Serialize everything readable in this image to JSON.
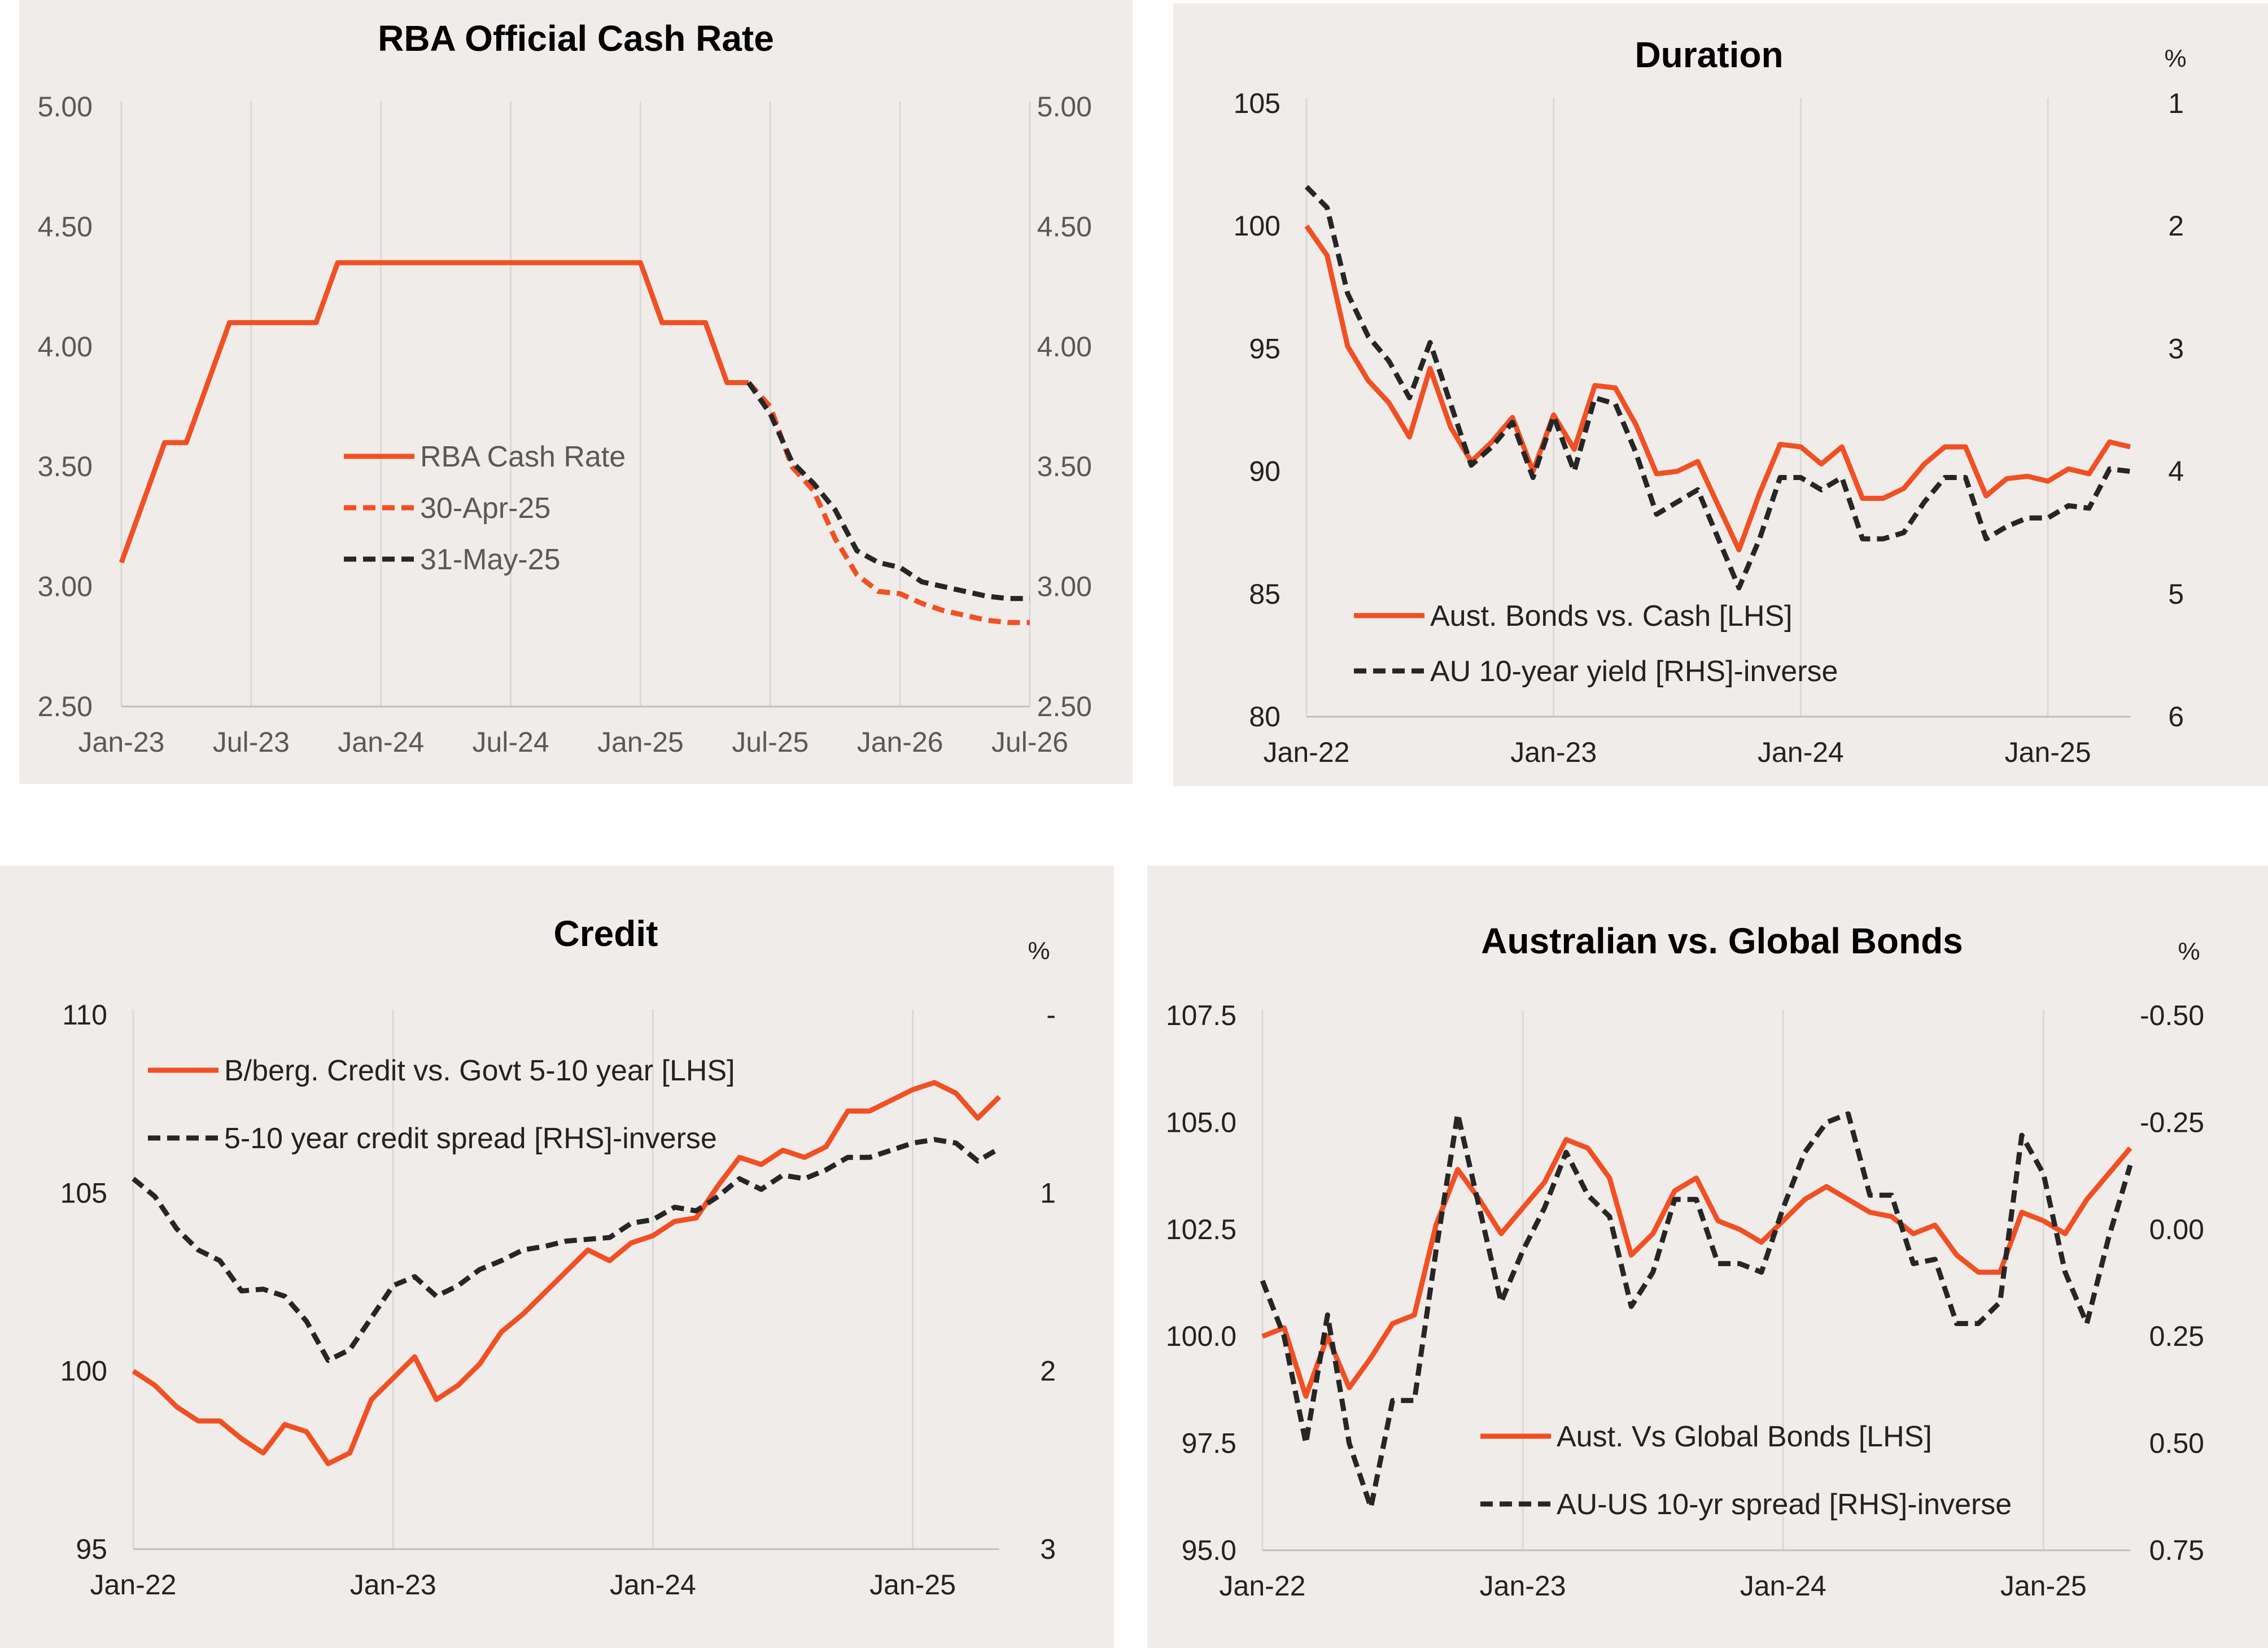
{
  "colors": {
    "orange": "#f05023",
    "black": "#262626",
    "panel_bg": "#f0ecea",
    "grid": "#d9d9d9"
  },
  "chart_data": [
    {
      "type": "line",
      "title": "RBA Official Cash Rate",
      "y_ticks_left": [
        "5.00",
        "4.50",
        "4.00",
        "3.50",
        "3.00",
        "2.50"
      ],
      "y_ticks_right": [
        "5.00",
        "4.50",
        "4.00",
        "3.50",
        "3.00",
        "2.50"
      ],
      "x_ticks": [
        "Jan-23",
        "Jul-23",
        "Jan-24",
        "Jul-24",
        "Jan-25",
        "Jul-25",
        "Jan-26",
        "Jul-26"
      ],
      "ylim": [
        2.5,
        5.0
      ],
      "legend_position": "center",
      "grid": "vertical",
      "series": [
        {
          "name": "RBA Cash Rate",
          "style": "solid",
          "color": "#f05023",
          "x": [
            "2023-01",
            "2023-03",
            "2023-04",
            "2023-06",
            "2023-07",
            "2023-08",
            "2023-09",
            "2023-10",
            "2023-11",
            "2024-01",
            "2024-03",
            "2024-06",
            "2024-09",
            "2024-12",
            "2025-01",
            "2025-02",
            "2025-03",
            "2025-04",
            "2025-05",
            "2025-06"
          ],
          "y": [
            3.1,
            3.6,
            3.6,
            4.1,
            4.1,
            4.1,
            4.1,
            4.1,
            4.35,
            4.35,
            4.35,
            4.35,
            4.35,
            4.35,
            4.35,
            4.1,
            4.1,
            4.1,
            3.85,
            3.85
          ]
        },
        {
          "name": "30-Apr-25",
          "style": "dashed",
          "color": "#f05023",
          "x": [
            "2025-06",
            "2025-07",
            "2025-08",
            "2025-09",
            "2025-10",
            "2025-11",
            "2025-12",
            "2026-01",
            "2026-02",
            "2026-03",
            "2026-04",
            "2026-05",
            "2026-06",
            "2026-07"
          ],
          "y": [
            3.85,
            3.75,
            3.5,
            3.4,
            3.2,
            3.05,
            2.98,
            2.97,
            2.93,
            2.9,
            2.88,
            2.86,
            2.85,
            2.85
          ]
        },
        {
          "name": "31-May-25",
          "style": "dashed",
          "color": "#262626",
          "x": [
            "2025-06",
            "2025-07",
            "2025-08",
            "2025-09",
            "2025-10",
            "2025-11",
            "2025-12",
            "2026-01",
            "2026-02",
            "2026-03",
            "2026-04",
            "2026-05",
            "2026-06",
            "2026-07"
          ],
          "y": [
            3.85,
            3.72,
            3.52,
            3.43,
            3.32,
            3.15,
            3.1,
            3.08,
            3.02,
            3.0,
            2.98,
            2.96,
            2.95,
            2.95
          ]
        }
      ]
    },
    {
      "type": "line",
      "title": "Duration",
      "right_unit": "%",
      "y_ticks_left": [
        "105",
        "100",
        "95",
        "90",
        "85",
        "80"
      ],
      "y_ticks_right": [
        "1",
        "2",
        "3",
        "4",
        "5",
        "6"
      ],
      "x_ticks": [
        "Jan-22",
        "Jan-23",
        "Jan-24",
        "Jan-25"
      ],
      "ylim": [
        80,
        105
      ],
      "y2lim": [
        6,
        1
      ],
      "legend_position": "bottom-left",
      "grid": "vertical",
      "series": [
        {
          "name": "Aust. Bonds vs. Cash [LHS]",
          "style": "solid",
          "color": "#f05023",
          "axis": "left",
          "y": [
            100.0,
            98.8,
            95.1,
            93.7,
            92.8,
            91.4,
            94.2,
            91.8,
            90.4,
            91.2,
            92.2,
            90.0,
            92.3,
            90.9,
            93.5,
            93.4,
            91.9,
            89.9,
            90.0,
            90.4,
            88.6,
            86.8,
            89.1,
            91.1,
            91.0,
            90.3,
            91.0,
            88.9,
            88.9,
            89.3,
            90.3,
            91.0,
            91.0,
            89.0,
            89.7,
            89.8,
            89.6,
            90.1,
            89.9,
            91.2,
            91.0
          ]
        },
        {
          "name": "AU 10-year yield [RHS]-inverse",
          "style": "dashed",
          "color": "#262626",
          "axis": "right",
          "y": [
            1.68,
            1.85,
            2.55,
            2.9,
            3.1,
            3.4,
            2.95,
            3.45,
            3.95,
            3.8,
            3.6,
            4.05,
            3.55,
            4.0,
            3.4,
            3.45,
            3.85,
            4.35,
            4.25,
            4.15,
            4.55,
            4.95,
            4.55,
            4.05,
            4.05,
            4.15,
            4.05,
            4.55,
            4.55,
            4.5,
            4.25,
            4.05,
            4.05,
            4.55,
            4.45,
            4.38,
            4.38,
            4.28,
            4.3,
            3.98,
            4.0
          ]
        }
      ]
    },
    {
      "type": "line",
      "title": "Credit",
      "right_unit": "%",
      "y_ticks_left": [
        "110",
        "105",
        "100",
        "95"
      ],
      "y_ticks_right": [
        "-",
        "1",
        "2",
        "3"
      ],
      "x_ticks": [
        "Jan-22",
        "Jan-23",
        "Jan-24",
        "Jan-25"
      ],
      "ylim": [
        95,
        110
      ],
      "y2lim": [
        3,
        0
      ],
      "legend_position": "top-left",
      "grid": "vertical",
      "series": [
        {
          "name": "B/berg. Credit vs. Govt 5-10 year [LHS]",
          "style": "solid",
          "color": "#f05023",
          "axis": "left",
          "y": [
            100.0,
            99.6,
            99.0,
            98.6,
            98.6,
            98.1,
            97.7,
            98.5,
            98.3,
            97.4,
            97.7,
            99.2,
            99.8,
            100.4,
            99.2,
            99.6,
            100.2,
            101.1,
            101.6,
            102.2,
            102.8,
            103.4,
            103.1,
            103.6,
            103.8,
            104.2,
            104.3,
            105.2,
            106.0,
            105.8,
            106.2,
            106.0,
            106.3,
            107.3,
            107.3,
            107.6,
            107.9,
            108.1,
            107.8,
            107.1,
            107.7
          ]
        },
        {
          "name": "5-10 year credit spread [RHS]-inverse",
          "style": "dashed",
          "color": "#262626",
          "axis": "right",
          "y": [
            0.92,
            1.02,
            1.2,
            1.32,
            1.38,
            1.55,
            1.54,
            1.58,
            1.72,
            1.94,
            1.88,
            1.7,
            1.52,
            1.47,
            1.58,
            1.52,
            1.43,
            1.38,
            1.32,
            1.3,
            1.27,
            1.26,
            1.25,
            1.17,
            1.15,
            1.08,
            1.1,
            1.02,
            0.92,
            0.98,
            0.9,
            0.92,
            0.87,
            0.8,
            0.8,
            0.76,
            0.72,
            0.7,
            0.72,
            0.82,
            0.75
          ]
        }
      ]
    },
    {
      "type": "line",
      "title": "Australian vs. Global Bonds",
      "right_unit": "%",
      "y_ticks_left": [
        "107.5",
        "105.0",
        "102.5",
        "100.0",
        "97.5",
        "95.0"
      ],
      "y_ticks_right": [
        "-0.50",
        "-0.25",
        "0.00",
        "0.25",
        "0.50",
        "0.75"
      ],
      "x_ticks": [
        "Jan-22",
        "Jan-23",
        "Jan-24",
        "Jan-25"
      ],
      "ylim": [
        95.0,
        107.5
      ],
      "y2lim": [
        0.75,
        -0.5
      ],
      "legend_position": "bottom-center",
      "grid": "vertical",
      "series": [
        {
          "name": "Aust. Vs Global Bonds [LHS]",
          "style": "solid",
          "color": "#f05023",
          "axis": "left",
          "y": [
            100.0,
            100.2,
            98.6,
            100.0,
            98.8,
            99.5,
            100.3,
            100.5,
            102.6,
            103.9,
            103.2,
            102.4,
            103.0,
            103.6,
            104.6,
            104.4,
            103.7,
            101.9,
            102.4,
            103.4,
            103.7,
            102.7,
            102.5,
            102.2,
            102.7,
            103.2,
            103.5,
            103.2,
            102.9,
            102.8,
            102.4,
            102.6,
            101.9,
            101.5,
            101.5,
            102.9,
            102.7,
            102.4,
            103.2,
            103.8,
            104.4
          ]
        },
        {
          "name": "AU-US 10-yr spread [RHS]-inverse",
          "style": "dashed",
          "color": "#262626",
          "axis": "right",
          "y": [
            0.12,
            0.25,
            0.5,
            0.2,
            0.5,
            0.65,
            0.4,
            0.4,
            0.05,
            -0.27,
            -0.05,
            0.17,
            0.05,
            -0.05,
            -0.18,
            -0.08,
            -0.03,
            0.18,
            0.1,
            -0.07,
            -0.07,
            0.08,
            0.08,
            0.1,
            -0.05,
            -0.18,
            -0.25,
            -0.27,
            -0.08,
            -0.08,
            0.08,
            0.07,
            0.22,
            0.22,
            0.17,
            -0.22,
            -0.13,
            0.1,
            0.22,
            0.02,
            -0.15
          ]
        }
      ]
    }
  ]
}
